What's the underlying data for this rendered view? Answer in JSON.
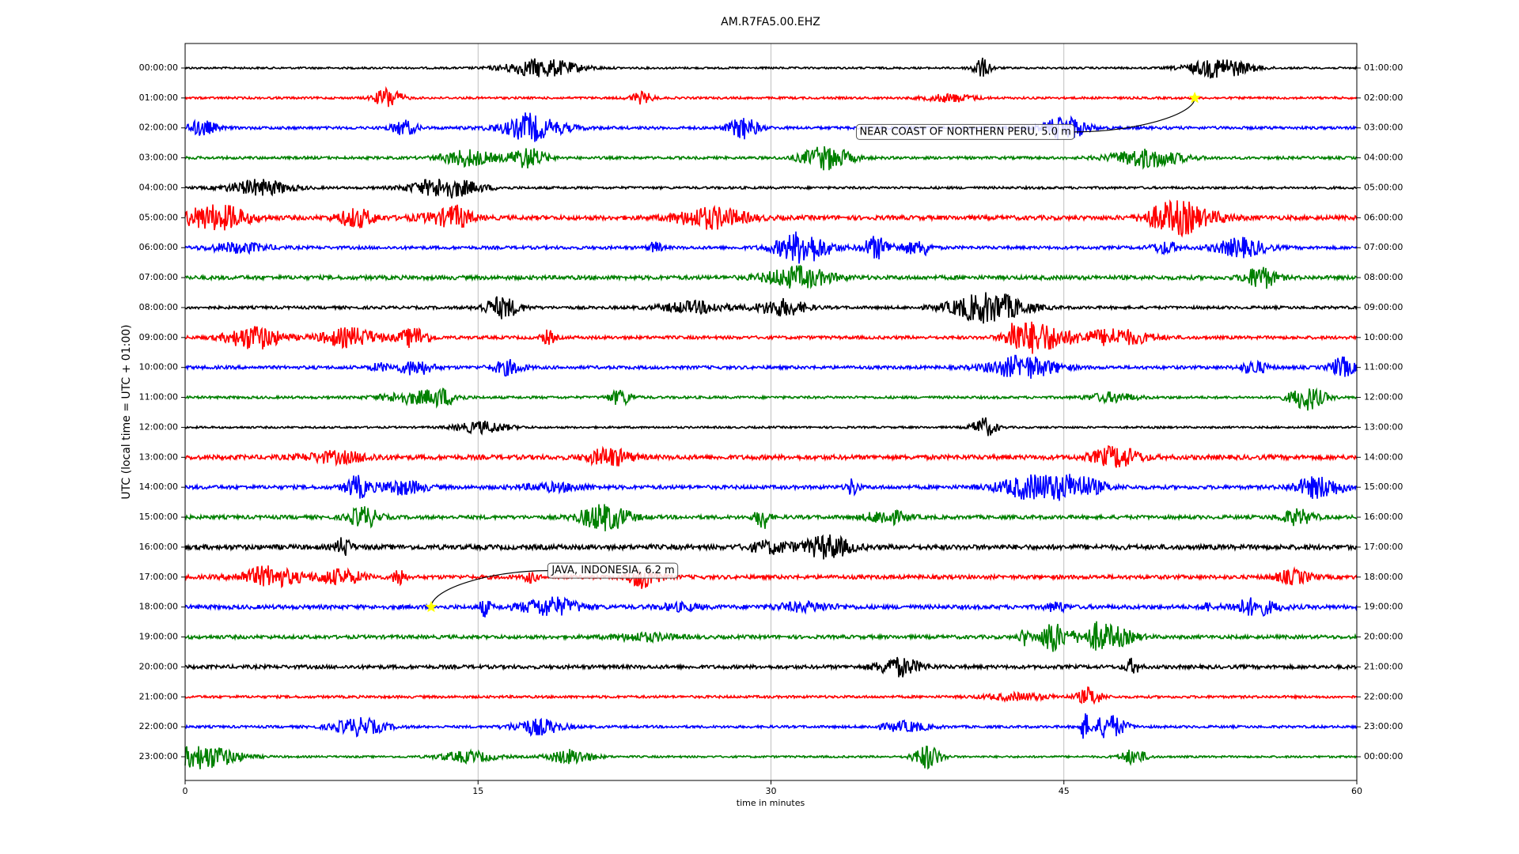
{
  "chart_data": {
    "type": "dayplot",
    "title": "AM.R7FA5.00.EHZ",
    "xlabel": "time in minutes",
    "ylabel": "UTC (local time = UTC + 01:00)",
    "xlim": [
      0,
      60
    ],
    "xticks": [
      0,
      15,
      30,
      45,
      60
    ],
    "grid": true,
    "series": [
      {
        "name": "00:00:00",
        "right_label": "01:00:00",
        "color": "#000000"
      },
      {
        "name": "01:00:00",
        "right_label": "02:00:00",
        "color": "#ff0000",
        "events": [
          {
            "label": "NEAR COAST OF NORTHERN PERU, 5.0 m",
            "minute": 51.7
          }
        ]
      },
      {
        "name": "02:00:00",
        "right_label": "03:00:00",
        "color": "#0000ff"
      },
      {
        "name": "03:00:00",
        "right_label": "04:00:00",
        "color": "#008000"
      },
      {
        "name": "04:00:00",
        "right_label": "05:00:00",
        "color": "#000000"
      },
      {
        "name": "05:00:00",
        "right_label": "06:00:00",
        "color": "#ff0000"
      },
      {
        "name": "06:00:00",
        "right_label": "07:00:00",
        "color": "#0000ff"
      },
      {
        "name": "07:00:00",
        "right_label": "08:00:00",
        "color": "#008000"
      },
      {
        "name": "08:00:00",
        "right_label": "09:00:00",
        "color": "#000000"
      },
      {
        "name": "09:00:00",
        "right_label": "10:00:00",
        "color": "#ff0000"
      },
      {
        "name": "10:00:00",
        "right_label": "11:00:00",
        "color": "#0000ff"
      },
      {
        "name": "11:00:00",
        "right_label": "12:00:00",
        "color": "#008000"
      },
      {
        "name": "12:00:00",
        "right_label": "13:00:00",
        "color": "#000000"
      },
      {
        "name": "13:00:00",
        "right_label": "14:00:00",
        "color": "#ff0000"
      },
      {
        "name": "14:00:00",
        "right_label": "15:00:00",
        "color": "#0000ff"
      },
      {
        "name": "15:00:00",
        "right_label": "16:00:00",
        "color": "#008000"
      },
      {
        "name": "16:00:00",
        "right_label": "17:00:00",
        "color": "#000000"
      },
      {
        "name": "17:00:00",
        "right_label": "18:00:00",
        "color": "#ff0000"
      },
      {
        "name": "18:00:00",
        "right_label": "19:00:00",
        "color": "#0000ff",
        "events": [
          {
            "label": "JAVA, INDONESIA, 6.2 m",
            "minute": 12.6
          }
        ]
      },
      {
        "name": "19:00:00",
        "right_label": "20:00:00",
        "color": "#008000"
      },
      {
        "name": "20:00:00",
        "right_label": "21:00:00",
        "color": "#000000"
      },
      {
        "name": "21:00:00",
        "right_label": "22:00:00",
        "color": "#ff0000"
      },
      {
        "name": "22:00:00",
        "right_label": "23:00:00",
        "color": "#0000ff"
      },
      {
        "name": "23:00:00",
        "right_label": "00:00:00",
        "color": "#008000"
      }
    ]
  }
}
